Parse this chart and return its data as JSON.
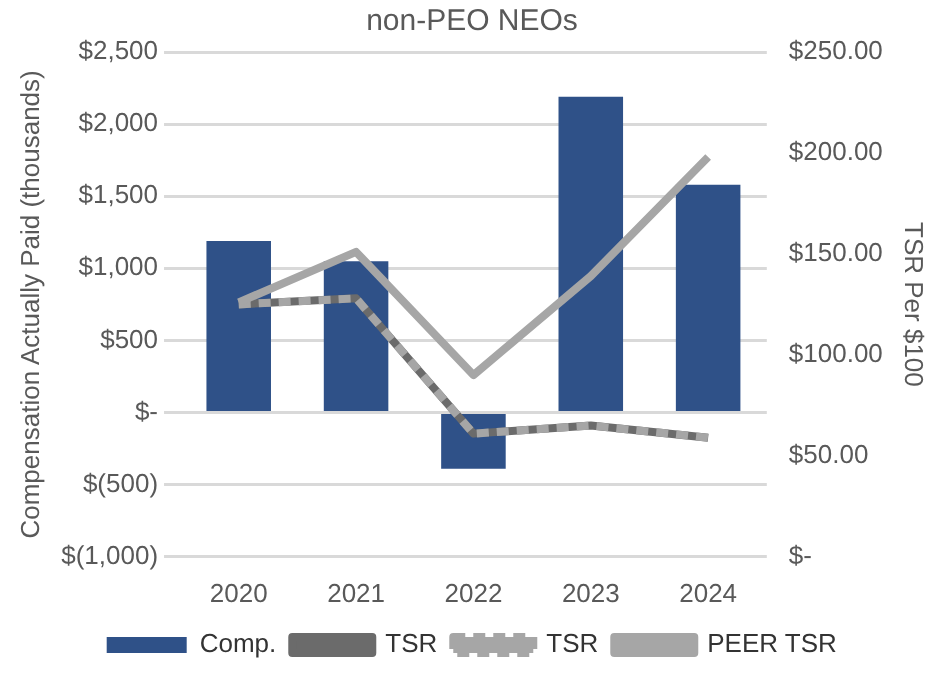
{
  "chart_data": {
    "type": "bar",
    "title": "non-PEO NEOs",
    "ylabel": "Compensation Actually Paid (thousands)",
    "y2label": "TSR Per $100",
    "categories": [
      "2020",
      "2021",
      "2022",
      "2023",
      "2024"
    ],
    "series": [
      {
        "name": "Comp.",
        "color": "#2f5188",
        "values": [
          1190,
          1050,
          -390,
          2190,
          1580
        ]
      },
      {
        "name": "TSR",
        "type": "line",
        "axis": "y2",
        "color": "#6b6b6b",
        "values": [
          125,
          128,
          61,
          65,
          59
        ]
      },
      {
        "name": "TSR",
        "type": "line",
        "axis": "y2",
        "color": "#a6a6a6",
        "line_style": "dashed",
        "values": [
          125,
          128,
          61,
          65,
          59
        ]
      },
      {
        "name": "PEER TSR",
        "type": "line",
        "axis": "y2",
        "color": "#a6a6a6",
        "values": [
          126,
          151,
          90,
          139,
          198
        ]
      }
    ],
    "ylim": [
      -1000,
      2500
    ],
    "yticks": [
      {
        "value": 2500,
        "label": "$2,500"
      },
      {
        "value": 2000,
        "label": "$2,000"
      },
      {
        "value": 1500,
        "label": "$1,500"
      },
      {
        "value": 1000,
        "label": "$1,000"
      },
      {
        "value": 500,
        "label": "$500"
      },
      {
        "value": 0,
        "label": "$-"
      },
      {
        "value": -500,
        "label": "$(500)"
      },
      {
        "value": -1000,
        "label": "$(1,000)"
      }
    ],
    "y2lim": [
      0,
      250
    ],
    "y2ticks": [
      {
        "value": 250,
        "label": "$250.00"
      },
      {
        "value": 200,
        "label": "$200.00"
      },
      {
        "value": 150,
        "label": "$150.00"
      },
      {
        "value": 100,
        "label": "$100.00"
      },
      {
        "value": 50,
        "label": "$50.00"
      },
      {
        "value": 0,
        "label": "$-"
      }
    ],
    "grid": "y",
    "legend": "bottom",
    "marker": "none"
  }
}
